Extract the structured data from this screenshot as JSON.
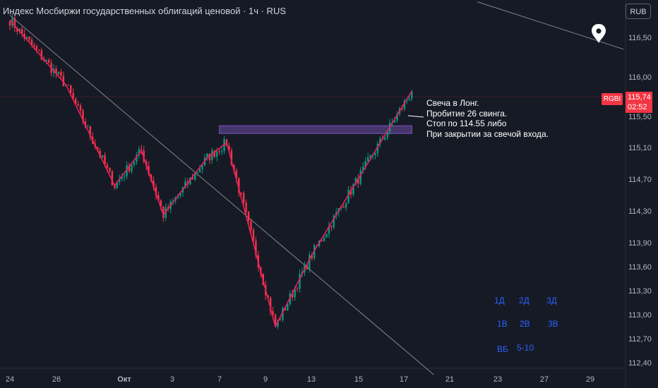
{
  "header": {
    "title": "Индекс Мосбиржи государственных облигаций ценовой · 1ч · RUS",
    "currency_button": "RUB"
  },
  "price_label": {
    "symbol": "RGBI",
    "price": "115,74",
    "countdown": "02:52"
  },
  "annotation": {
    "lines": [
      "Свеча в Лонг.",
      "Пробитие 26 свинга.",
      "Стоп по 114.55 либо",
      "При закрытии за свечой входа."
    ]
  },
  "timeframes": {
    "row1": [
      "1Д",
      "2Д",
      "3Д"
    ],
    "row2": [
      "1В",
      "2В",
      "3В"
    ],
    "row3": [
      "ВБ",
      "5-10"
    ]
  },
  "colors": {
    "background": "#161a25",
    "up": "#089981",
    "down": "#f23645",
    "zigzag": "#e91e63",
    "zone": "#7e57c2",
    "trendline": "#b2b5be",
    "text": "#d1d4dc",
    "accent": "#2962ff"
  },
  "icons": {
    "marker": "location-pin-icon"
  },
  "chart_data": {
    "type": "candlestick",
    "title": "Индекс Мосбиржи государственных облигаций ценовой · 1ч · RUS",
    "xlabel": "",
    "ylabel": "",
    "x_ticks": [
      "24",
      "26",
      "Окт",
      "3",
      "7",
      "9",
      "13",
      "15",
      "17",
      "21",
      "23",
      "27",
      "29"
    ],
    "y_ticks": [
      "116,50",
      "116,00",
      "115,50",
      "115,10",
      "114,70",
      "114,30",
      "113,90",
      "113,60",
      "113,30",
      "113,00",
      "112,70",
      "112,40"
    ],
    "ylim": [
      112.3,
      116.85
    ],
    "grid": false,
    "last_price": 115.74,
    "zigzag": [
      {
        "bar": 0,
        "price": 116.72
      },
      {
        "bar": 23,
        "price": 115.9
      },
      {
        "bar": 43,
        "price": 114.62
      },
      {
        "bar": 54,
        "price": 115.06
      },
      {
        "bar": 63,
        "price": 114.25
      },
      {
        "bar": 81,
        "price": 114.97
      },
      {
        "bar": 89,
        "price": 115.16
      },
      {
        "bar": 109,
        "price": 112.85
      },
      {
        "bar": 124,
        "price": 113.75
      },
      {
        "bar": 165,
        "price": 115.82
      }
    ],
    "zone": {
      "from_bar": 86,
      "to_bar": 165,
      "high": 115.38,
      "low": 115.28
    },
    "trendlines": [
      {
        "from": {
          "bar": 0,
          "price": 116.78
        },
        "to": {
          "bar": 174,
          "price": 112.25
        }
      },
      {
        "from": {
          "bar": 192,
          "price": 116.95
        },
        "to": {
          "bar": 252,
          "price": 116.35
        }
      }
    ],
    "stop": 114.55,
    "ohlc": []
  }
}
